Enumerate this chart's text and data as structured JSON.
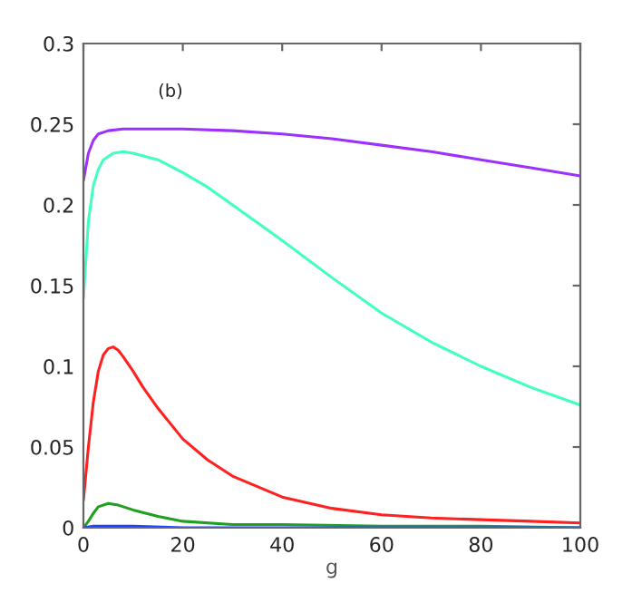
{
  "chart_data": {
    "type": "line",
    "xlabel": "g",
    "annotations": [
      "(b)"
    ],
    "xlim": [
      0,
      100
    ],
    "ylim": [
      0,
      0.3
    ],
    "xticks": [
      0,
      20,
      40,
      60,
      80,
      100
    ],
    "yticks": [
      0,
      {
        "value": 0.05,
        "label": "0.05"
      },
      {
        "value": 0.1,
        "label": "0.1"
      },
      {
        "value": 0.15,
        "label": "0.15"
      },
      {
        "value": 0.2,
        "label": "0.2"
      },
      {
        "value": 0.25,
        "label": "0.25"
      },
      {
        "value": 0.3,
        "label": "0.3"
      }
    ],
    "grid": false,
    "legend": false,
    "series": [
      {
        "color": "#9b30ff",
        "x": [
          0,
          1,
          2,
          3,
          5,
          8,
          10,
          15,
          20,
          30,
          40,
          50,
          60,
          70,
          80,
          90,
          100
        ],
        "values": [
          0.215,
          0.232,
          0.24,
          0.244,
          0.246,
          0.247,
          0.247,
          0.247,
          0.247,
          0.246,
          0.244,
          0.241,
          0.237,
          0.233,
          0.228,
          0.223,
          0.218
        ]
      },
      {
        "color": "#40ffc0",
        "x": [
          0,
          1,
          2,
          3,
          4,
          6,
          8,
          10,
          15,
          20,
          25,
          30,
          40,
          50,
          60,
          70,
          80,
          90,
          100
        ],
        "values": [
          0.142,
          0.19,
          0.212,
          0.222,
          0.228,
          0.232,
          0.233,
          0.232,
          0.228,
          0.22,
          0.211,
          0.2,
          0.178,
          0.155,
          0.133,
          0.115,
          0.1,
          0.087,
          0.076
        ]
      },
      {
        "color": "#ff2020",
        "x": [
          0,
          1,
          2,
          3,
          4,
          5,
          6,
          7,
          8,
          10,
          12,
          15,
          20,
          25,
          30,
          40,
          50,
          60,
          70,
          80,
          90,
          100
        ],
        "values": [
          0.017,
          0.05,
          0.078,
          0.097,
          0.107,
          0.111,
          0.112,
          0.11,
          0.106,
          0.097,
          0.087,
          0.074,
          0.055,
          0.042,
          0.032,
          0.019,
          0.012,
          0.008,
          0.006,
          0.005,
          0.004,
          0.003
        ]
      },
      {
        "color": "#20a020",
        "x": [
          0,
          1,
          2,
          3,
          5,
          7,
          10,
          15,
          20,
          30,
          40,
          60,
          80,
          100
        ],
        "values": [
          0,
          0.004,
          0.009,
          0.013,
          0.015,
          0.014,
          0.011,
          0.007,
          0.004,
          0.002,
          0.002,
          0.001,
          0.001,
          0
        ]
      },
      {
        "color": "#2040ff",
        "x": [
          0,
          2,
          5,
          10,
          20,
          40,
          100
        ],
        "values": [
          0,
          0.001,
          0.001,
          0.001,
          0,
          0,
          0
        ]
      }
    ]
  }
}
